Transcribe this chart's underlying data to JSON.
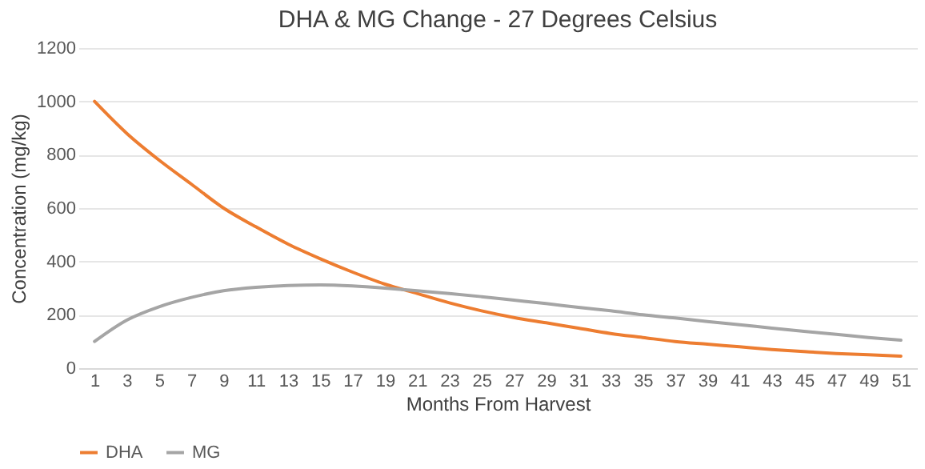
{
  "chart_data": {
    "type": "line",
    "title": "DHA & MG Change - 27 Degrees Celsius",
    "xlabel": "Months From Harvest",
    "ylabel": "Concentration (mg/kg)",
    "x": [
      1,
      3,
      5,
      7,
      9,
      11,
      13,
      15,
      17,
      19,
      21,
      23,
      25,
      27,
      29,
      31,
      33,
      35,
      37,
      39,
      41,
      43,
      45,
      47,
      49,
      51
    ],
    "series": [
      {
        "name": "DHA",
        "color": "#ed7d31",
        "values": [
          1000,
          880,
          780,
          690,
          600,
          530,
          465,
          410,
          360,
          315,
          280,
          245,
          215,
          190,
          170,
          150,
          130,
          115,
          100,
          90,
          80,
          70,
          62,
          55,
          50,
          45
        ]
      },
      {
        "name": "MG",
        "color": "#a5a5a5",
        "values": [
          100,
          180,
          230,
          265,
          290,
          303,
          310,
          312,
          308,
          300,
          290,
          280,
          268,
          255,
          242,
          228,
          215,
          200,
          188,
          175,
          163,
          150,
          138,
          127,
          115,
          105
        ]
      }
    ],
    "xlim": [
      0,
      52
    ],
    "xticks": [
      1,
      3,
      5,
      7,
      9,
      11,
      13,
      15,
      17,
      19,
      21,
      23,
      25,
      27,
      29,
      31,
      33,
      35,
      37,
      39,
      41,
      43,
      45,
      47,
      49,
      51
    ],
    "ylim": [
      0,
      1200
    ],
    "yticks": [
      0,
      200,
      400,
      600,
      800,
      1000,
      1200
    ],
    "grid": "y",
    "legend": "bottom",
    "marker": "none",
    "line_style": "solid"
  }
}
